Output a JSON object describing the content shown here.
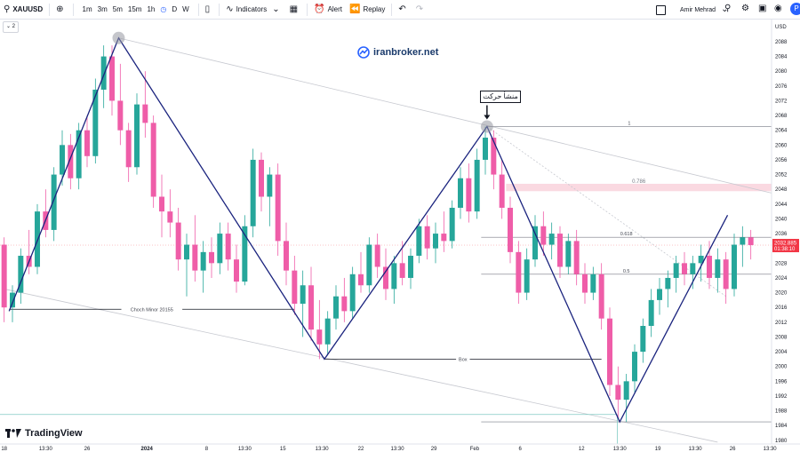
{
  "toolbar": {
    "symbol": "XAUUSD",
    "intervals": [
      "1m",
      "3m",
      "5m",
      "15m",
      "1h",
      "D",
      "W"
    ],
    "indicators_label": "Indicators",
    "alert_label": "Alert",
    "replay_label": "Replay",
    "user_name": "Amir Mehrad",
    "avatar_letter": "P"
  },
  "sub_toolbar": {
    "collapse_count": "2"
  },
  "watermark": {
    "text": "iranbroker.net"
  },
  "brand": {
    "logo_text": "TradingView"
  },
  "callout": {
    "text": "منشأ حرکت"
  },
  "colors": {
    "up": "#26a69a",
    "down": "#ef5da8",
    "zigzag": "#1a237e",
    "current_price": "#f23645",
    "fib_band": "#f8c9d4"
  },
  "chart_data": {
    "type": "candlestick",
    "symbol": "XAUUSD",
    "y_axis": {
      "currency": "USD",
      "ticks": [
        2088,
        2084,
        2080,
        2076,
        2072,
        2068,
        2064,
        2060,
        2056,
        2052,
        2048,
        2044,
        2040,
        2036,
        2028,
        2024,
        2020,
        2016,
        2012,
        2008,
        2004,
        2000,
        1996,
        1992,
        1988,
        1984,
        1980
      ],
      "ylim": [
        1979,
        2094
      ]
    },
    "x_axis": {
      "ticks": [
        {
          "label": "18",
          "pos": 0.0
        },
        {
          "label": "13:30",
          "pos": 5.0
        },
        {
          "label": "26",
          "pos": 10.0
        },
        {
          "label": "2024",
          "pos": 17.2
        },
        {
          "label": "8",
          "pos": 24.4
        },
        {
          "label": "13:30",
          "pos": 29.0
        },
        {
          "label": "15",
          "pos": 33.6
        },
        {
          "label": "13:30",
          "pos": 38.3
        },
        {
          "label": "22",
          "pos": 43.0
        },
        {
          "label": "13:30",
          "pos": 47.4
        },
        {
          "label": "29",
          "pos": 51.8
        },
        {
          "label": "Feb",
          "pos": 56.7
        },
        {
          "label": "6",
          "pos": 62.2
        },
        {
          "label": "12",
          "pos": 69.6
        },
        {
          "label": "13:30",
          "pos": 74.2
        },
        {
          "label": "19",
          "pos": 78.8
        },
        {
          "label": "13:30",
          "pos": 83.3
        },
        {
          "label": "26",
          "pos": 87.8
        },
        {
          "label": "13:30",
          "pos": 92.3
        }
      ],
      "xlim": [
        -0.5,
        92.5
      ]
    },
    "current_price": {
      "value": 2032.885,
      "label": "2032.885",
      "countdown": "01:38:10"
    },
    "zigzag": [
      {
        "x": 0.6,
        "price": 2015
      },
      {
        "x": 13.8,
        "price": 2089
      },
      {
        "x": 38.6,
        "price": 2002
      },
      {
        "x": 58.2,
        "price": 2065
      },
      {
        "x": 74.2,
        "price": 1985
      },
      {
        "x": 87.2,
        "price": 2041
      }
    ],
    "pivots": [
      {
        "x": 13.8,
        "price": 2089
      },
      {
        "x": 58.2,
        "price": 2065
      }
    ],
    "horizontal_lines": [
      {
        "label": "Choch Minor 20155",
        "price": 2015.5,
        "x1": 0.6,
        "x2": 35
      },
      {
        "label": "Box",
        "price": 2002,
        "x1": 38.6,
        "x2": 72
      },
      {
        "label": "1",
        "price": 2065,
        "x1": 58.2,
        "x2": 92.5
      },
      {
        "label": "0.618",
        "price": 2035,
        "x1": 57.5,
        "x2": 92.5
      },
      {
        "label": "0.5",
        "price": 2025,
        "x1": 57.5,
        "x2": 92.5
      },
      {
        "label": "",
        "price": 1985,
        "x1": 57.5,
        "x2": 92.5
      }
    ],
    "fib_band": {
      "label": "0.786",
      "from": 2047.5,
      "to": 2049.5,
      "x1": 60.5,
      "x2": 92.5
    },
    "channel_lines": [
      {
        "x1": 13.8,
        "p1": 2089,
        "x2": 92.5,
        "p2": 2047
      },
      {
        "x1": 0.0,
        "p1": 2021,
        "x2": 86.0,
        "p2": 1979.5
      }
    ],
    "candles": [
      {
        "o": 2033,
        "h": 2035,
        "l": 2012,
        "c": 2016
      },
      {
        "o": 2016,
        "h": 2022,
        "l": 2012,
        "c": 2020
      },
      {
        "o": 2020,
        "h": 2032,
        "l": 2017,
        "c": 2030
      },
      {
        "o": 2030,
        "h": 2037,
        "l": 2025,
        "c": 2027
      },
      {
        "o": 2027,
        "h": 2044,
        "l": 2025,
        "c": 2042
      },
      {
        "o": 2042,
        "h": 2048,
        "l": 2035,
        "c": 2037
      },
      {
        "o": 2037,
        "h": 2054,
        "l": 2034,
        "c": 2052
      },
      {
        "o": 2052,
        "h": 2064,
        "l": 2049,
        "c": 2060
      },
      {
        "o": 2060,
        "h": 2063,
        "l": 2048,
        "c": 2051
      },
      {
        "o": 2051,
        "h": 2066,
        "l": 2048,
        "c": 2064
      },
      {
        "o": 2064,
        "h": 2068,
        "l": 2054,
        "c": 2057
      },
      {
        "o": 2057,
        "h": 2078,
        "l": 2055,
        "c": 2075
      },
      {
        "o": 2075,
        "h": 2087,
        "l": 2070,
        "c": 2084
      },
      {
        "o": 2084,
        "h": 2087,
        "l": 2068,
        "c": 2072
      },
      {
        "o": 2072,
        "h": 2082,
        "l": 2060,
        "c": 2064
      },
      {
        "o": 2064,
        "h": 2066,
        "l": 2050,
        "c": 2054
      },
      {
        "o": 2054,
        "h": 2074,
        "l": 2052,
        "c": 2071
      },
      {
        "o": 2071,
        "h": 2080,
        "l": 2062,
        "c": 2066
      },
      {
        "o": 2066,
        "h": 2068,
        "l": 2043,
        "c": 2046
      },
      {
        "o": 2046,
        "h": 2052,
        "l": 2035,
        "c": 2042
      },
      {
        "o": 2042,
        "h": 2048,
        "l": 2035,
        "c": 2039
      },
      {
        "o": 2039,
        "h": 2043,
        "l": 2026,
        "c": 2029
      },
      {
        "o": 2029,
        "h": 2036,
        "l": 2019,
        "c": 2033
      },
      {
        "o": 2033,
        "h": 2041,
        "l": 2023,
        "c": 2026
      },
      {
        "o": 2026,
        "h": 2034,
        "l": 2020,
        "c": 2031
      },
      {
        "o": 2031,
        "h": 2035,
        "l": 2024,
        "c": 2028
      },
      {
        "o": 2028,
        "h": 2039,
        "l": 2025,
        "c": 2036
      },
      {
        "o": 2036,
        "h": 2039,
        "l": 2026,
        "c": 2029
      },
      {
        "o": 2029,
        "h": 2033,
        "l": 2020,
        "c": 2023
      },
      {
        "o": 2023,
        "h": 2041,
        "l": 2022,
        "c": 2038
      },
      {
        "o": 2038,
        "h": 2059,
        "l": 2035,
        "c": 2056
      },
      {
        "o": 2056,
        "h": 2058,
        "l": 2042,
        "c": 2046
      },
      {
        "o": 2046,
        "h": 2054,
        "l": 2038,
        "c": 2052
      },
      {
        "o": 2052,
        "h": 2055,
        "l": 2030,
        "c": 2034
      },
      {
        "o": 2034,
        "h": 2039,
        "l": 2022,
        "c": 2026
      },
      {
        "o": 2026,
        "h": 2030,
        "l": 2014,
        "c": 2017
      },
      {
        "o": 2017,
        "h": 2026,
        "l": 2008,
        "c": 2022
      },
      {
        "o": 2022,
        "h": 2027,
        "l": 2007,
        "c": 2010
      },
      {
        "o": 2010,
        "h": 2018,
        "l": 2002,
        "c": 2006
      },
      {
        "o": 2006,
        "h": 2015,
        "l": 2003,
        "c": 2013
      },
      {
        "o": 2013,
        "h": 2022,
        "l": 2010,
        "c": 2019
      },
      {
        "o": 2019,
        "h": 2024,
        "l": 2012,
        "c": 2015
      },
      {
        "o": 2015,
        "h": 2027,
        "l": 2013,
        "c": 2025
      },
      {
        "o": 2025,
        "h": 2031,
        "l": 2020,
        "c": 2022
      },
      {
        "o": 2022,
        "h": 2035,
        "l": 2020,
        "c": 2033
      },
      {
        "o": 2033,
        "h": 2036,
        "l": 2024,
        "c": 2027
      },
      {
        "o": 2027,
        "h": 2032,
        "l": 2018,
        "c": 2021
      },
      {
        "o": 2021,
        "h": 2030,
        "l": 2017,
        "c": 2028
      },
      {
        "o": 2028,
        "h": 2034,
        "l": 2022,
        "c": 2024
      },
      {
        "o": 2024,
        "h": 2032,
        "l": 2021,
        "c": 2030
      },
      {
        "o": 2030,
        "h": 2040,
        "l": 2028,
        "c": 2038
      },
      {
        "o": 2038,
        "h": 2041,
        "l": 2029,
        "c": 2032
      },
      {
        "o": 2032,
        "h": 2039,
        "l": 2028,
        "c": 2036
      },
      {
        "o": 2036,
        "h": 2042,
        "l": 2031,
        "c": 2034
      },
      {
        "o": 2034,
        "h": 2045,
        "l": 2032,
        "c": 2043
      },
      {
        "o": 2043,
        "h": 2054,
        "l": 2040,
        "c": 2051
      },
      {
        "o": 2051,
        "h": 2055,
        "l": 2039,
        "c": 2042
      },
      {
        "o": 2042,
        "h": 2059,
        "l": 2040,
        "c": 2056
      },
      {
        "o": 2056,
        "h": 2065,
        "l": 2052,
        "c": 2062
      },
      {
        "o": 2062,
        "h": 2064,
        "l": 2048,
        "c": 2052
      },
      {
        "o": 2052,
        "h": 2056,
        "l": 2040,
        "c": 2043
      },
      {
        "o": 2043,
        "h": 2046,
        "l": 2028,
        "c": 2031
      },
      {
        "o": 2031,
        "h": 2034,
        "l": 2017,
        "c": 2020
      },
      {
        "o": 2020,
        "h": 2032,
        "l": 2018,
        "c": 2029
      },
      {
        "o": 2029,
        "h": 2041,
        "l": 2027,
        "c": 2038
      },
      {
        "o": 2038,
        "h": 2042,
        "l": 2030,
        "c": 2033
      },
      {
        "o": 2033,
        "h": 2039,
        "l": 2029,
        "c": 2036
      },
      {
        "o": 2036,
        "h": 2038,
        "l": 2024,
        "c": 2027
      },
      {
        "o": 2027,
        "h": 2036,
        "l": 2025,
        "c": 2034
      },
      {
        "o": 2034,
        "h": 2037,
        "l": 2022,
        "c": 2025
      },
      {
        "o": 2025,
        "h": 2028,
        "l": 2017,
        "c": 2020
      },
      {
        "o": 2020,
        "h": 2027,
        "l": 2018,
        "c": 2025
      },
      {
        "o": 2025,
        "h": 2028,
        "l": 2010,
        "c": 2013
      },
      {
        "o": 2013,
        "h": 2016,
        "l": 1992,
        "c": 1995
      },
      {
        "o": 1995,
        "h": 2000,
        "l": 1986,
        "c": 1991
      },
      {
        "o": 1991,
        "h": 1998,
        "l": 1985,
        "c": 1996
      },
      {
        "o": 1996,
        "h": 2006,
        "l": 1993,
        "c": 2004
      },
      {
        "o": 2004,
        "h": 2013,
        "l": 2001,
        "c": 2011
      },
      {
        "o": 2011,
        "h": 2021,
        "l": 2008,
        "c": 2018
      },
      {
        "o": 2018,
        "h": 2024,
        "l": 2014,
        "c": 2021
      },
      {
        "o": 2021,
        "h": 2026,
        "l": 2016,
        "c": 2024
      },
      {
        "o": 2024,
        "h": 2030,
        "l": 2020,
        "c": 2028
      },
      {
        "o": 2028,
        "h": 2031,
        "l": 2022,
        "c": 2025
      },
      {
        "o": 2025,
        "h": 2030,
        "l": 2021,
        "c": 2028
      },
      {
        "o": 2028,
        "h": 2033,
        "l": 2023,
        "c": 2030
      },
      {
        "o": 2030,
        "h": 2034,
        "l": 2021,
        "c": 2024
      },
      {
        "o": 2024,
        "h": 2032,
        "l": 2020,
        "c": 2029
      },
      {
        "o": 2029,
        "h": 2031,
        "l": 2017,
        "c": 2021
      },
      {
        "o": 2021,
        "h": 2036,
        "l": 2019,
        "c": 2033
      },
      {
        "o": 2033,
        "h": 2038,
        "l": 2027,
        "c": 2035
      },
      {
        "o": 2035,
        "h": 2037,
        "l": 2029,
        "c": 2032.885
      }
    ]
  }
}
